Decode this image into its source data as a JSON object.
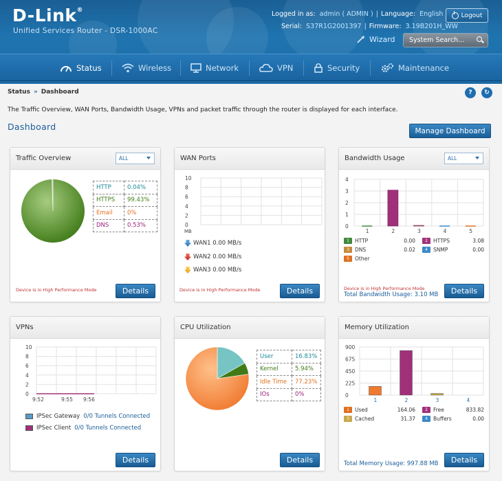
{
  "brand": {
    "logo": "D-Link",
    "reg": "®",
    "product": "Unified Services Router - DSR-1000AC"
  },
  "topbar": {
    "logged_label": "Logged in as:",
    "user": "admin ( ADMIN )",
    "language_label": "Language:",
    "language": "English [US]",
    "logout": "Logout",
    "serial_label": "Serial:",
    "serial": "S37R1G2001397",
    "firmware_label": "Firmware:",
    "firmware": "3.19B201H_WW",
    "wizard": "Wizard",
    "search_placeholder": "System Search..."
  },
  "nav": [
    {
      "label": "Status",
      "icon": "gauge-icon",
      "active": true
    },
    {
      "label": "Wireless",
      "icon": "wifi-icon"
    },
    {
      "label": "Network",
      "icon": "network-icon"
    },
    {
      "label": "VPN",
      "icon": "cloud-icon"
    },
    {
      "label": "Security",
      "icon": "lock-icon"
    },
    {
      "label": "Maintenance",
      "icon": "gears-icon"
    }
  ],
  "breadcrumb": {
    "root": "Status",
    "sep": "»",
    "current": "Dashboard"
  },
  "help_icons": {
    "help": "?",
    "refresh": "↻"
  },
  "description": "The Traffic Overview, WAN Ports, Bandwidth Usage, VPNs and packet traffic through the router is displayed for each interface.",
  "dashboard_title": "Dashboard",
  "manage_button": "Manage Dashboard",
  "details_label": "Details",
  "performance_note": "Device is in High Performance Mode",
  "panels": {
    "traffic": {
      "title": "Traffic Overview",
      "select": "ALL",
      "rows": [
        {
          "label": "HTTP",
          "value": "0.04%",
          "color": "#1b8a9a"
        },
        {
          "label": "HTTPS",
          "value": "99.43%",
          "color": "#3f7a17"
        },
        {
          "label": "Email",
          "value": "0%",
          "color": "#e07020"
        },
        {
          "label": "DNS",
          "value": "0.53%",
          "color": "#9a1f7a"
        }
      ],
      "pie_percent": [
        0.04,
        99.43,
        0,
        0.53
      ]
    },
    "wan": {
      "title": "WAN Ports",
      "unit": "MB",
      "yticks": [
        "10",
        "8",
        "6",
        "4",
        "2",
        "0"
      ],
      "rows": [
        {
          "label": "WAN1 0.00 MB/s",
          "color": "#3c88c8",
          "dir": "down"
        },
        {
          "label": "WAN2 0.00 MB/s",
          "color": "#d0342c",
          "dir": "down"
        },
        {
          "label": "WAN3 0.00 MB/s",
          "color": "#f0b030",
          "dir": "down"
        }
      ]
    },
    "bandwidth": {
      "title": "Bandwidth Usage",
      "select": "ALL",
      "total": "Total Bandwidth Usage: 3.10 MB",
      "legend": [
        {
          "key": "1",
          "label": "HTTP",
          "value": "0.00",
          "color": "#3f8a3a"
        },
        {
          "key": "2",
          "label": "HTTPS",
          "value": "3.08",
          "color": "#a0307a"
        },
        {
          "key": "3",
          "label": "DNS",
          "value": "0.02",
          "color": "#c88a3a"
        },
        {
          "key": "4",
          "label": "SNMP",
          "value": "0.00",
          "color": "#3c88c8"
        },
        {
          "key": "5",
          "label": "Other",
          "value": "",
          "color": "#e07020"
        }
      ]
    },
    "vpns": {
      "title": "VPNs",
      "yticks": [
        "10",
        "8",
        "6",
        "4",
        "2",
        "0"
      ],
      "xticks": [
        "9:52",
        "9:55",
        "9:56"
      ],
      "legend": [
        {
          "label": "IPSec Gateway",
          "value": "0/0 Tunnels Connected",
          "color": "#5a9ac8"
        },
        {
          "label": "IPSec Client",
          "value": "0/0 Tunnels Connected",
          "color": "#a0307a"
        }
      ]
    },
    "cpu": {
      "title": "CPU Utilization",
      "rows": [
        {
          "label": "User",
          "value": "16.83%",
          "color": "#1b8a9a"
        },
        {
          "label": "Kernel",
          "value": "5.94%",
          "color": "#3f7a17"
        },
        {
          "label": "Idle Time",
          "value": "77.23%",
          "color": "#e07020"
        },
        {
          "label": "IOs",
          "value": "0%",
          "color": "#9a1f7a"
        }
      ],
      "pie_percent": [
        16.83,
        5.94,
        77.23,
        0
      ]
    },
    "memory": {
      "title": "Memory Utilization",
      "total": "Total Memory Usage: 997.88 MB",
      "legend": [
        {
          "key": "1",
          "label": "Used",
          "value": "164.06",
          "color": "#e07020"
        },
        {
          "key": "2",
          "label": "Free",
          "value": "833.82",
          "color": "#a0307a"
        },
        {
          "key": "3",
          "label": "Cached",
          "value": "31.37",
          "color": "#c8a84a"
        },
        {
          "key": "4",
          "label": "Buffers",
          "value": "0.00",
          "color": "#3c88c8"
        }
      ]
    }
  },
  "chart_data": [
    {
      "type": "pie",
      "title": "Traffic Overview",
      "categories": [
        "HTTP",
        "HTTPS",
        "Email",
        "DNS"
      ],
      "values": [
        0.04,
        99.43,
        0,
        0.53
      ]
    },
    {
      "type": "line",
      "title": "WAN Ports",
      "ylabel": "MB",
      "ylim": [
        0,
        10
      ],
      "series": [
        {
          "name": "WAN1",
          "values": [
            0
          ]
        },
        {
          "name": "WAN2",
          "values": [
            0
          ]
        },
        {
          "name": "WAN3",
          "values": [
            0
          ]
        }
      ]
    },
    {
      "type": "bar",
      "title": "Bandwidth Usage",
      "categories": [
        "1",
        "2",
        "3",
        "4",
        "5"
      ],
      "values": [
        0.0,
        3.08,
        0.02,
        0.0,
        0.0
      ],
      "ylim": [
        0,
        4
      ],
      "yticks": [
        "0",
        "1",
        "2",
        "3",
        "4"
      ]
    },
    {
      "type": "line",
      "title": "VPNs",
      "x": [
        "9:52",
        "9:55",
        "9:56"
      ],
      "ylim": [
        0,
        10
      ],
      "series": [
        {
          "name": "IPSec Gateway",
          "values": [
            0,
            0,
            0
          ]
        },
        {
          "name": "IPSec Client",
          "values": [
            0,
            0,
            0
          ]
        }
      ]
    },
    {
      "type": "pie",
      "title": "CPU Utilization",
      "categories": [
        "User",
        "Kernel",
        "Idle Time",
        "IOs"
      ],
      "values": [
        16.83,
        5.94,
        77.23,
        0
      ]
    },
    {
      "type": "bar",
      "title": "Memory Utilization",
      "categories": [
        "1",
        "2",
        "3",
        "4"
      ],
      "values": [
        164.06,
        833.82,
        31.37,
        0.0
      ],
      "ylim": [
        0,
        900
      ],
      "yticks": [
        "0",
        "225",
        "450",
        "675",
        "900"
      ]
    }
  ]
}
